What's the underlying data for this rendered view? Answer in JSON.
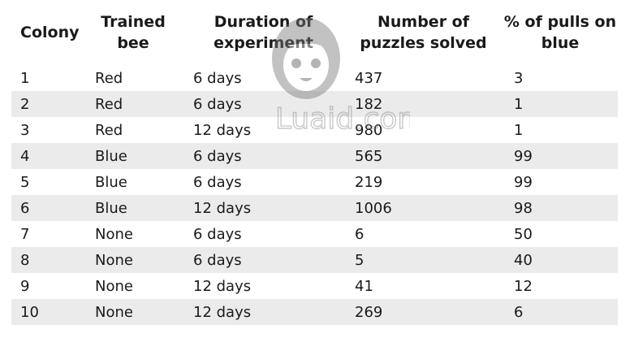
{
  "table": {
    "headers": [
      "Colony",
      "Trained bee",
      "Duration of experiment",
      "Number of puzzles solved",
      "% of pulls on blue"
    ],
    "rows": [
      [
        "1",
        "Red",
        "6 days",
        "437",
        "3"
      ],
      [
        "2",
        "Red",
        "6 days",
        "182",
        "1"
      ],
      [
        "3",
        "Red",
        "12 days",
        "980",
        "1"
      ],
      [
        "4",
        "Blue",
        "6 days",
        "565",
        "99"
      ],
      [
        "5",
        "Blue",
        "6 days",
        "219",
        "99"
      ],
      [
        "6",
        "Blue",
        "12 days",
        "1006",
        "98"
      ],
      [
        "7",
        "None",
        "6 days",
        "6",
        "50"
      ],
      [
        "8",
        "None",
        "6 days",
        "5",
        "40"
      ],
      [
        "9",
        "None",
        "12 days",
        "41",
        "12"
      ],
      [
        "10",
        "None",
        "12 days",
        "269",
        "6"
      ]
    ]
  },
  "watermark": {
    "text": "Luaid.com"
  },
  "colors": {
    "stripe": "#ebebeb",
    "text": "#1a1a1a",
    "watermark": "#8a8a8a"
  }
}
